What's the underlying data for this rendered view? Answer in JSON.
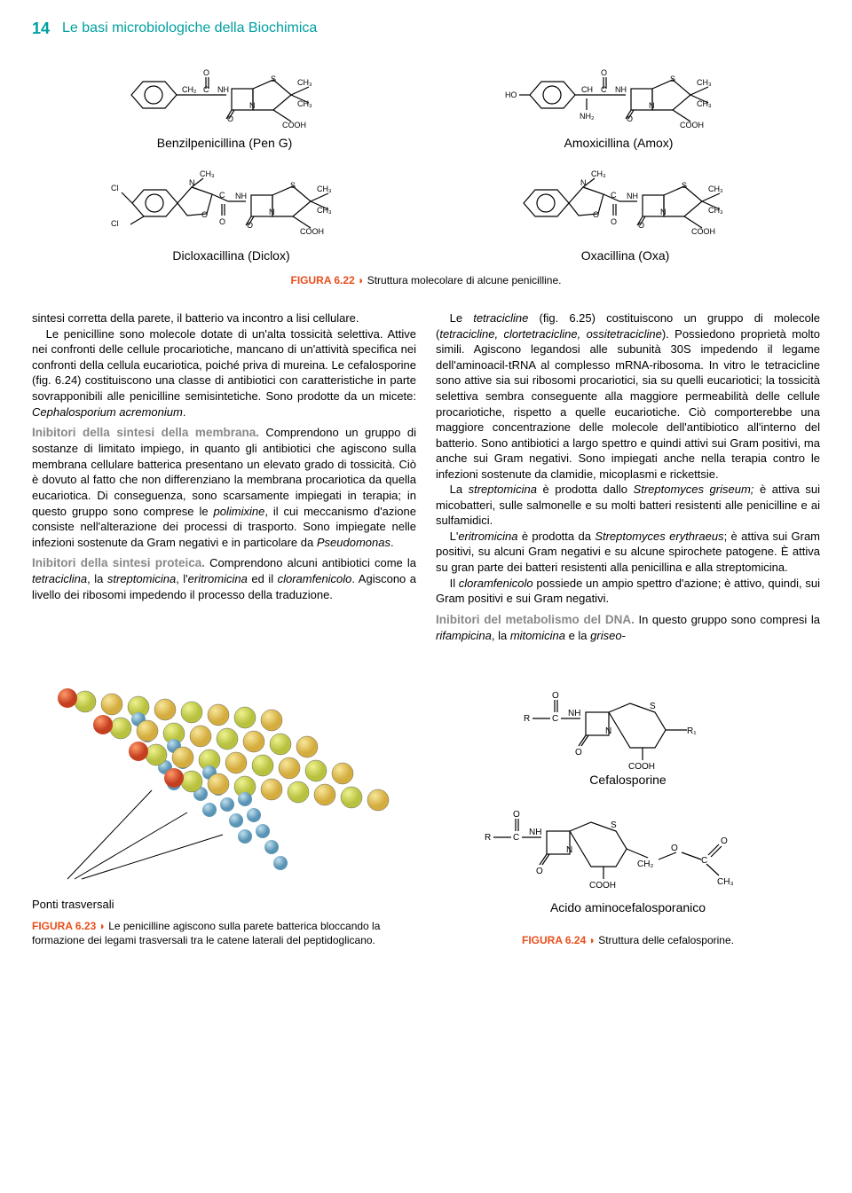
{
  "header": {
    "page_num": "14",
    "chapter": "Le basi microbiologiche della Biochimica"
  },
  "fig622": {
    "mols": [
      {
        "label": "Benzilpenicillina (Pen G)"
      },
      {
        "label": "Amoxicillina (Amox)"
      },
      {
        "label": "Dicloxacillina (Diclox)"
      },
      {
        "label": "Oxacillina (Oxa)"
      }
    ],
    "num": "FIGURA 6.22",
    "arrow": "◗",
    "text": "Struttura molecolare di alcune penicilline."
  },
  "col_left": {
    "p1": "sintesi corretta della parete, il batterio va incontro a lisi cellulare.",
    "p2a": "Le penicilline sono molecole dotate di un'alta tossicità selettiva. Attive nei confronti delle cellule procariotiche, mancano di un'attività specifica nei confronti della cellula eucariotica, poiché priva di mureina. Le cefalosporine (fig. 6.24) costituiscono una classe di antibiotici con caratteristiche in parte sovrapponibili alle penicilline semisintetiche. Sono prodotte da un micete: ",
    "p2b": "Cephalosporium acremonium",
    "p2c": ".",
    "sh1": "Inibitori della sintesi della membrana.",
    "p3a": " Comprendono un gruppo di sostanze di limitato impiego, in quanto gli antibiotici che agiscono sulla membrana cellulare batterica presentano un elevato grado di tossicità. Ciò è dovuto al fatto che non differenziano la membrana procariotica da quella eucariotica. Di conseguenza, sono scarsamente impiegati in terapia; in questo gruppo sono comprese le ",
    "p3b": "polimixine",
    "p3c": ", il cui meccanismo d'azione consiste nell'alterazione dei processi di trasporto. Sono impiegate nelle infezioni sostenute da Gram negativi e in particolare da ",
    "p3d": "Pseudomonas",
    "p3e": ".",
    "sh2": "Inibitori della sintesi proteica.",
    "p4a": " Comprendono alcuni antibiotici come la ",
    "p4b": "tetraciclina",
    "p4c": ", la ",
    "p4d": "streptomicina",
    "p4e": ", l'",
    "p4f": "eritromicina",
    "p4g": " ed il ",
    "p4h": "cloramfenicolo",
    "p4i": ". Agiscono a livello dei ribosomi impedendo il processo della traduzione."
  },
  "col_right": {
    "p1a": "Le ",
    "p1b": "tetracicline",
    "p1c": " (fig. 6.25) costituiscono un gruppo di molecole (",
    "p1d": "tetracicline, clortetracicline, ossitetracicline",
    "p1e": "). Possiedono proprietà molto simili. Agiscono legandosi alle subunità 30S impedendo il legame dell'aminoacil-tRNA al complesso mRNA-ribosoma. In vitro le tetracicline sono attive sia sui ribosomi procariotici, sia su quelli eucariotici; la tossicità selettiva sembra conseguente alla maggiore permeabilità delle cellule procariotiche, rispetto a quelle eucariotiche. Ciò comporterebbe una maggiore concentrazione delle molecole dell'antibiotico all'interno del batterio. Sono antibiotici a largo spettro e quindi attivi sui Gram positivi, ma anche sui Gram negativi. Sono impiegati anche nella terapia contro le infezioni sostenute da clamidie, micoplasmi e rickettsie.",
    "p2a": "La ",
    "p2b": "streptomicina",
    "p2c": " è prodotta dallo ",
    "p2d": "Streptomyces griseum;",
    "p2e": " è attiva sui micobatteri, sulle salmonelle e su molti batteri resistenti alle penicilline e ai sulfamidici.",
    "p3a": "L'",
    "p3b": "eritromicina",
    "p3c": " è prodotta da ",
    "p3d": "Streptomyces erythraeus",
    "p3e": "; è attiva sui Gram positivi, su alcuni Gram negativi e su alcune spirochete patogene. È attiva su gran parte dei batteri resistenti alla penicillina e alla streptomicina.",
    "p4a": "Il ",
    "p4b": "cloramfenicolo",
    "p4c": " possiede un ampio spettro d'azione; è attivo, quindi, sui Gram positivi e sui Gram negativi.",
    "sh3": "Inibitori del metabolismo del DNA.",
    "p5a": " In questo gruppo sono compresi la ",
    "p5b": "rifampicina",
    "p5c": ", la ",
    "p5d": "mitomicina",
    "p5e": " e la ",
    "p5f": "griseo-"
  },
  "fig623": {
    "ponti": "Ponti trasversali",
    "num": "FIGURA 6.23",
    "arrow": "◗",
    "text": "Le penicilline agiscono sulla parete batterica bloccando la formazione dei legami trasversali tra le catene laterali del peptidoglicano."
  },
  "fig624": {
    "lab1": "Cefalosporine",
    "lab2": "Acido aminocefalosporanico",
    "num": "FIGURA 6.24",
    "arrow": "◗",
    "text": "Struttura delle cefalosporine."
  },
  "colors": {
    "teal": "#00a0a0",
    "orange": "#e94e1b",
    "grey": "#888888",
    "bead_red": "#d94a2a",
    "bead_blue": "#6fa8c9",
    "bead_green": "#d4dc5e",
    "bead_yellow": "#e8c558"
  }
}
